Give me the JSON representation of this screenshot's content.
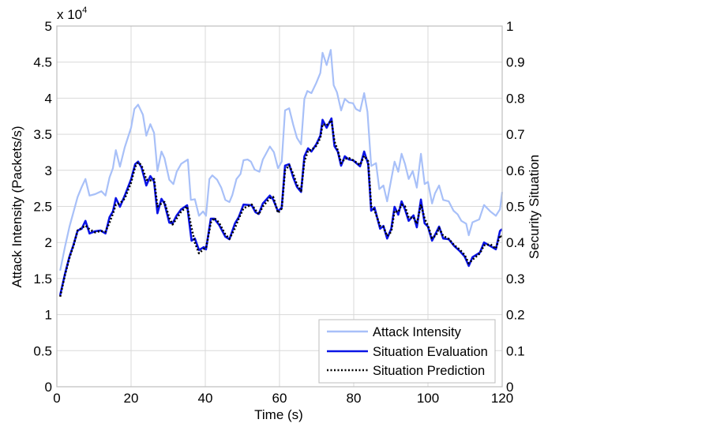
{
  "chart_data": {
    "type": "line",
    "title": "",
    "xlabel": "Time (s)",
    "ylabel": "Attack Intensity (Packets/s)",
    "ylabel_right": "Security Situation",
    "y_multiplier_label": "x 10",
    "y_multiplier_exponent": "4",
    "xlim": [
      0,
      120
    ],
    "ylim": [
      0,
      5
    ],
    "ylim_right": [
      0,
      1
    ],
    "grid": true,
    "legend_position": "bottom-right",
    "x_ticks": [
      "0",
      "20",
      "40",
      "60",
      "80",
      "100",
      "120"
    ],
    "y_ticks": [
      "0",
      "0.5",
      "1",
      "1.5",
      "2",
      "2.5",
      "3",
      "3.5",
      "4",
      "4.5",
      "5"
    ],
    "y_ticks_right": [
      "0",
      "0.1",
      "0.2",
      "0.3",
      "0.4",
      "0.5",
      "0.6",
      "0.7",
      "0.8",
      "0.9",
      "1"
    ],
    "series": [
      {
        "name": "Attack Intensity",
        "axis": "left",
        "color": "#a8c0f8",
        "style": "solid",
        "x": [
          0.9,
          2.2,
          3.4,
          5.6,
          6.7,
          7.7,
          8.8,
          10.3,
          12.0,
          13.1,
          14.2,
          15.1,
          15.9,
          17.0,
          18.3,
          20.0,
          20.9,
          21.9,
          23.2,
          24.1,
          25.2,
          26.2,
          27.1,
          28.2,
          29.0,
          30.3,
          31.4,
          32.3,
          33.5,
          35.3,
          36.1,
          37.2,
          38.3,
          39.4,
          40.2,
          41.1,
          41.9,
          43.2,
          44.3,
          45.4,
          46.5,
          47.3,
          48.4,
          49.5,
          50.3,
          51.4,
          52.3,
          53.3,
          54.6,
          55.5,
          57.4,
          58.5,
          59.6,
          60.6,
          61.5,
          62.6,
          63.7,
          64.7,
          65.8,
          66.7,
          67.5,
          68.6,
          69.9,
          71.0,
          71.6,
          72.7,
          73.8,
          74.6,
          75.5,
          76.6,
          77.6,
          78.7,
          79.8,
          80.6,
          81.7,
          82.8,
          83.7,
          84.7,
          86.0,
          86.9,
          88.0,
          89.0,
          91.0,
          92.0,
          92.9,
          93.8,
          94.8,
          95.9,
          97.0,
          98.1,
          99.1,
          100.0,
          101.1,
          101.9,
          103.0,
          104.1,
          105.6,
          106.9,
          108.0,
          109.0,
          110.3,
          111.0,
          112.0,
          113.8,
          115.1,
          116.8,
          118.3,
          119.4,
          120.0
        ],
        "values": [
          1.61,
          1.94,
          2.22,
          2.63,
          2.77,
          2.88,
          2.65,
          2.67,
          2.71,
          2.65,
          2.9,
          3.03,
          3.28,
          3.05,
          3.32,
          3.59,
          3.85,
          3.91,
          3.77,
          3.48,
          3.64,
          3.52,
          2.99,
          3.26,
          3.17,
          2.87,
          2.81,
          2.98,
          3.09,
          3.15,
          2.59,
          2.6,
          2.37,
          2.43,
          2.37,
          2.88,
          2.93,
          2.87,
          2.76,
          2.59,
          2.56,
          2.66,
          2.88,
          2.95,
          3.14,
          3.15,
          3.12,
          3.01,
          2.98,
          3.15,
          3.33,
          3.25,
          3.03,
          3.12,
          3.83,
          3.86,
          3.63,
          3.45,
          3.36,
          3.99,
          4.1,
          4.07,
          4.21,
          4.35,
          4.63,
          4.46,
          4.67,
          4.18,
          4.08,
          3.83,
          3.99,
          3.94,
          3.93,
          3.85,
          3.82,
          4.07,
          3.81,
          3.06,
          3.1,
          2.74,
          2.79,
          2.57,
          3.12,
          2.98,
          3.23,
          3.09,
          2.88,
          2.99,
          2.76,
          3.23,
          2.81,
          2.84,
          2.54,
          2.68,
          2.79,
          2.59,
          2.57,
          2.44,
          2.39,
          2.3,
          2.26,
          2.1,
          2.28,
          2.32,
          2.52,
          2.43,
          2.37,
          2.46,
          2.7
        ]
      },
      {
        "name": "Situation Evaluation",
        "axis": "right",
        "color": "#0a14e6",
        "style": "solid",
        "x": [
          0.9,
          2.2,
          3.4,
          4.5,
          5.6,
          6.7,
          7.7,
          8.8,
          10.3,
          11.8,
          13.1,
          14.2,
          15.1,
          15.9,
          17.0,
          18.3,
          20.0,
          21.1,
          21.9,
          22.8,
          24.1,
          25.2,
          26.2,
          27.1,
          28.2,
          29.0,
          30.3,
          31.2,
          32.3,
          33.5,
          35.1,
          36.3,
          37.2,
          38.3,
          39.6,
          40.2,
          41.5,
          42.4,
          43.7,
          45.4,
          46.5,
          48.0,
          49.0,
          50.3,
          52.5,
          53.5,
          54.4,
          55.5,
          57.4,
          58.3,
          59.6,
          60.6,
          61.5,
          62.6,
          63.7,
          64.7,
          65.8,
          66.7,
          67.7,
          68.6,
          69.9,
          71.0,
          71.6,
          72.7,
          74.0,
          74.8,
          75.7,
          76.6,
          77.6,
          78.7,
          79.8,
          81.7,
          82.8,
          83.9,
          84.7,
          85.6,
          87.1,
          88.0,
          89.0,
          90.1,
          91.0,
          92.0,
          92.9,
          93.8,
          94.8,
          96.1,
          97.0,
          98.1,
          99.1,
          100.0,
          101.1,
          102.2,
          103.0,
          104.1,
          105.6,
          107.1,
          108.6,
          109.9,
          111.0,
          112.0,
          114.0,
          115.1,
          116.8,
          118.3,
          119.4,
          120.0
        ],
        "values": [
          0.254,
          0.313,
          0.361,
          0.394,
          0.433,
          0.438,
          0.46,
          0.425,
          0.431,
          0.433,
          0.425,
          0.47,
          0.486,
          0.523,
          0.499,
          0.53,
          0.575,
          0.617,
          0.624,
          0.608,
          0.558,
          0.584,
          0.569,
          0.481,
          0.521,
          0.508,
          0.455,
          0.453,
          0.475,
          0.492,
          0.503,
          0.405,
          0.411,
          0.379,
          0.387,
          0.381,
          0.466,
          0.466,
          0.449,
          0.416,
          0.409,
          0.453,
          0.47,
          0.505,
          0.503,
          0.484,
          0.479,
          0.508,
          0.53,
          0.519,
          0.486,
          0.497,
          0.613,
          0.617,
          0.58,
          0.554,
          0.54,
          0.639,
          0.661,
          0.652,
          0.672,
          0.696,
          0.74,
          0.718,
          0.744,
          0.667,
          0.652,
          0.613,
          0.639,
          0.63,
          0.628,
          0.611,
          0.652,
          0.617,
          0.488,
          0.497,
          0.438,
          0.446,
          0.411,
          0.438,
          0.499,
          0.477,
          0.514,
          0.492,
          0.46,
          0.475,
          0.442,
          0.519,
          0.453,
          0.444,
          0.405,
          0.427,
          0.444,
          0.411,
          0.409,
          0.39,
          0.376,
          0.361,
          0.335,
          0.359,
          0.372,
          0.4,
          0.39,
          0.381,
          0.432,
          0.437
        ]
      },
      {
        "name": "Situation Prediction",
        "axis": "right",
        "color": "#000000",
        "style": "dotted",
        "x": [
          0.9,
          2.2,
          3.4,
          4.5,
          5.6,
          6.7,
          7.7,
          8.8,
          10.3,
          11.8,
          13.1,
          14.2,
          15.1,
          15.9,
          17.0,
          18.3,
          20.0,
          21.1,
          21.9,
          22.8,
          24.1,
          25.2,
          26.2,
          27.1,
          28.2,
          29.0,
          30.3,
          31.2,
          32.3,
          33.5,
          35.1,
          36.3,
          37.2,
          38.3,
          39.6,
          40.2,
          41.5,
          42.4,
          43.7,
          45.4,
          46.5,
          48.0,
          49.0,
          50.3,
          52.5,
          53.5,
          54.4,
          55.5,
          57.4,
          58.3,
          59.6,
          60.6,
          61.5,
          62.6,
          63.7,
          64.7,
          65.8,
          66.7,
          67.7,
          68.6,
          69.9,
          71.0,
          71.6,
          72.7,
          74.0,
          74.8,
          75.7,
          76.6,
          77.6,
          78.7,
          79.8,
          81.7,
          82.8,
          83.9,
          84.7,
          85.6,
          87.1,
          88.0,
          89.0,
          90.1,
          91.0,
          92.0,
          92.9,
          93.8,
          94.8,
          96.1,
          97.0,
          98.1,
          99.1,
          100.0,
          101.1,
          102.2,
          103.0,
          104.1,
          105.6,
          107.1,
          108.6,
          109.9,
          111.0,
          112.0,
          114.0,
          115.1,
          116.8,
          118.3,
          119.4,
          120.0
        ],
        "values": [
          0.25,
          0.31,
          0.358,
          0.392,
          0.433,
          0.44,
          0.447,
          0.436,
          0.428,
          0.432,
          0.43,
          0.455,
          0.48,
          0.505,
          0.508,
          0.522,
          0.566,
          0.61,
          0.622,
          0.614,
          0.574,
          0.572,
          0.576,
          0.5,
          0.508,
          0.512,
          0.468,
          0.45,
          0.467,
          0.486,
          0.5,
          0.44,
          0.4,
          0.37,
          0.382,
          0.384,
          0.455,
          0.468,
          0.455,
          0.422,
          0.41,
          0.44,
          0.466,
          0.495,
          0.505,
          0.49,
          0.478,
          0.5,
          0.523,
          0.526,
          0.482,
          0.494,
          0.6,
          0.614,
          0.59,
          0.56,
          0.543,
          0.625,
          0.655,
          0.656,
          0.668,
          0.69,
          0.728,
          0.725,
          0.738,
          0.68,
          0.655,
          0.62,
          0.632,
          0.634,
          0.628,
          0.615,
          0.64,
          0.625,
          0.5,
          0.49,
          0.446,
          0.443,
          0.418,
          0.43,
          0.488,
          0.484,
          0.505,
          0.5,
          0.468,
          0.47,
          0.452,
          0.505,
          0.466,
          0.446,
          0.412,
          0.42,
          0.44,
          0.418,
          0.41,
          0.392,
          0.38,
          0.365,
          0.342,
          0.352,
          0.37,
          0.392,
          0.395,
          0.383,
          0.42,
          0.412
        ]
      }
    ]
  }
}
